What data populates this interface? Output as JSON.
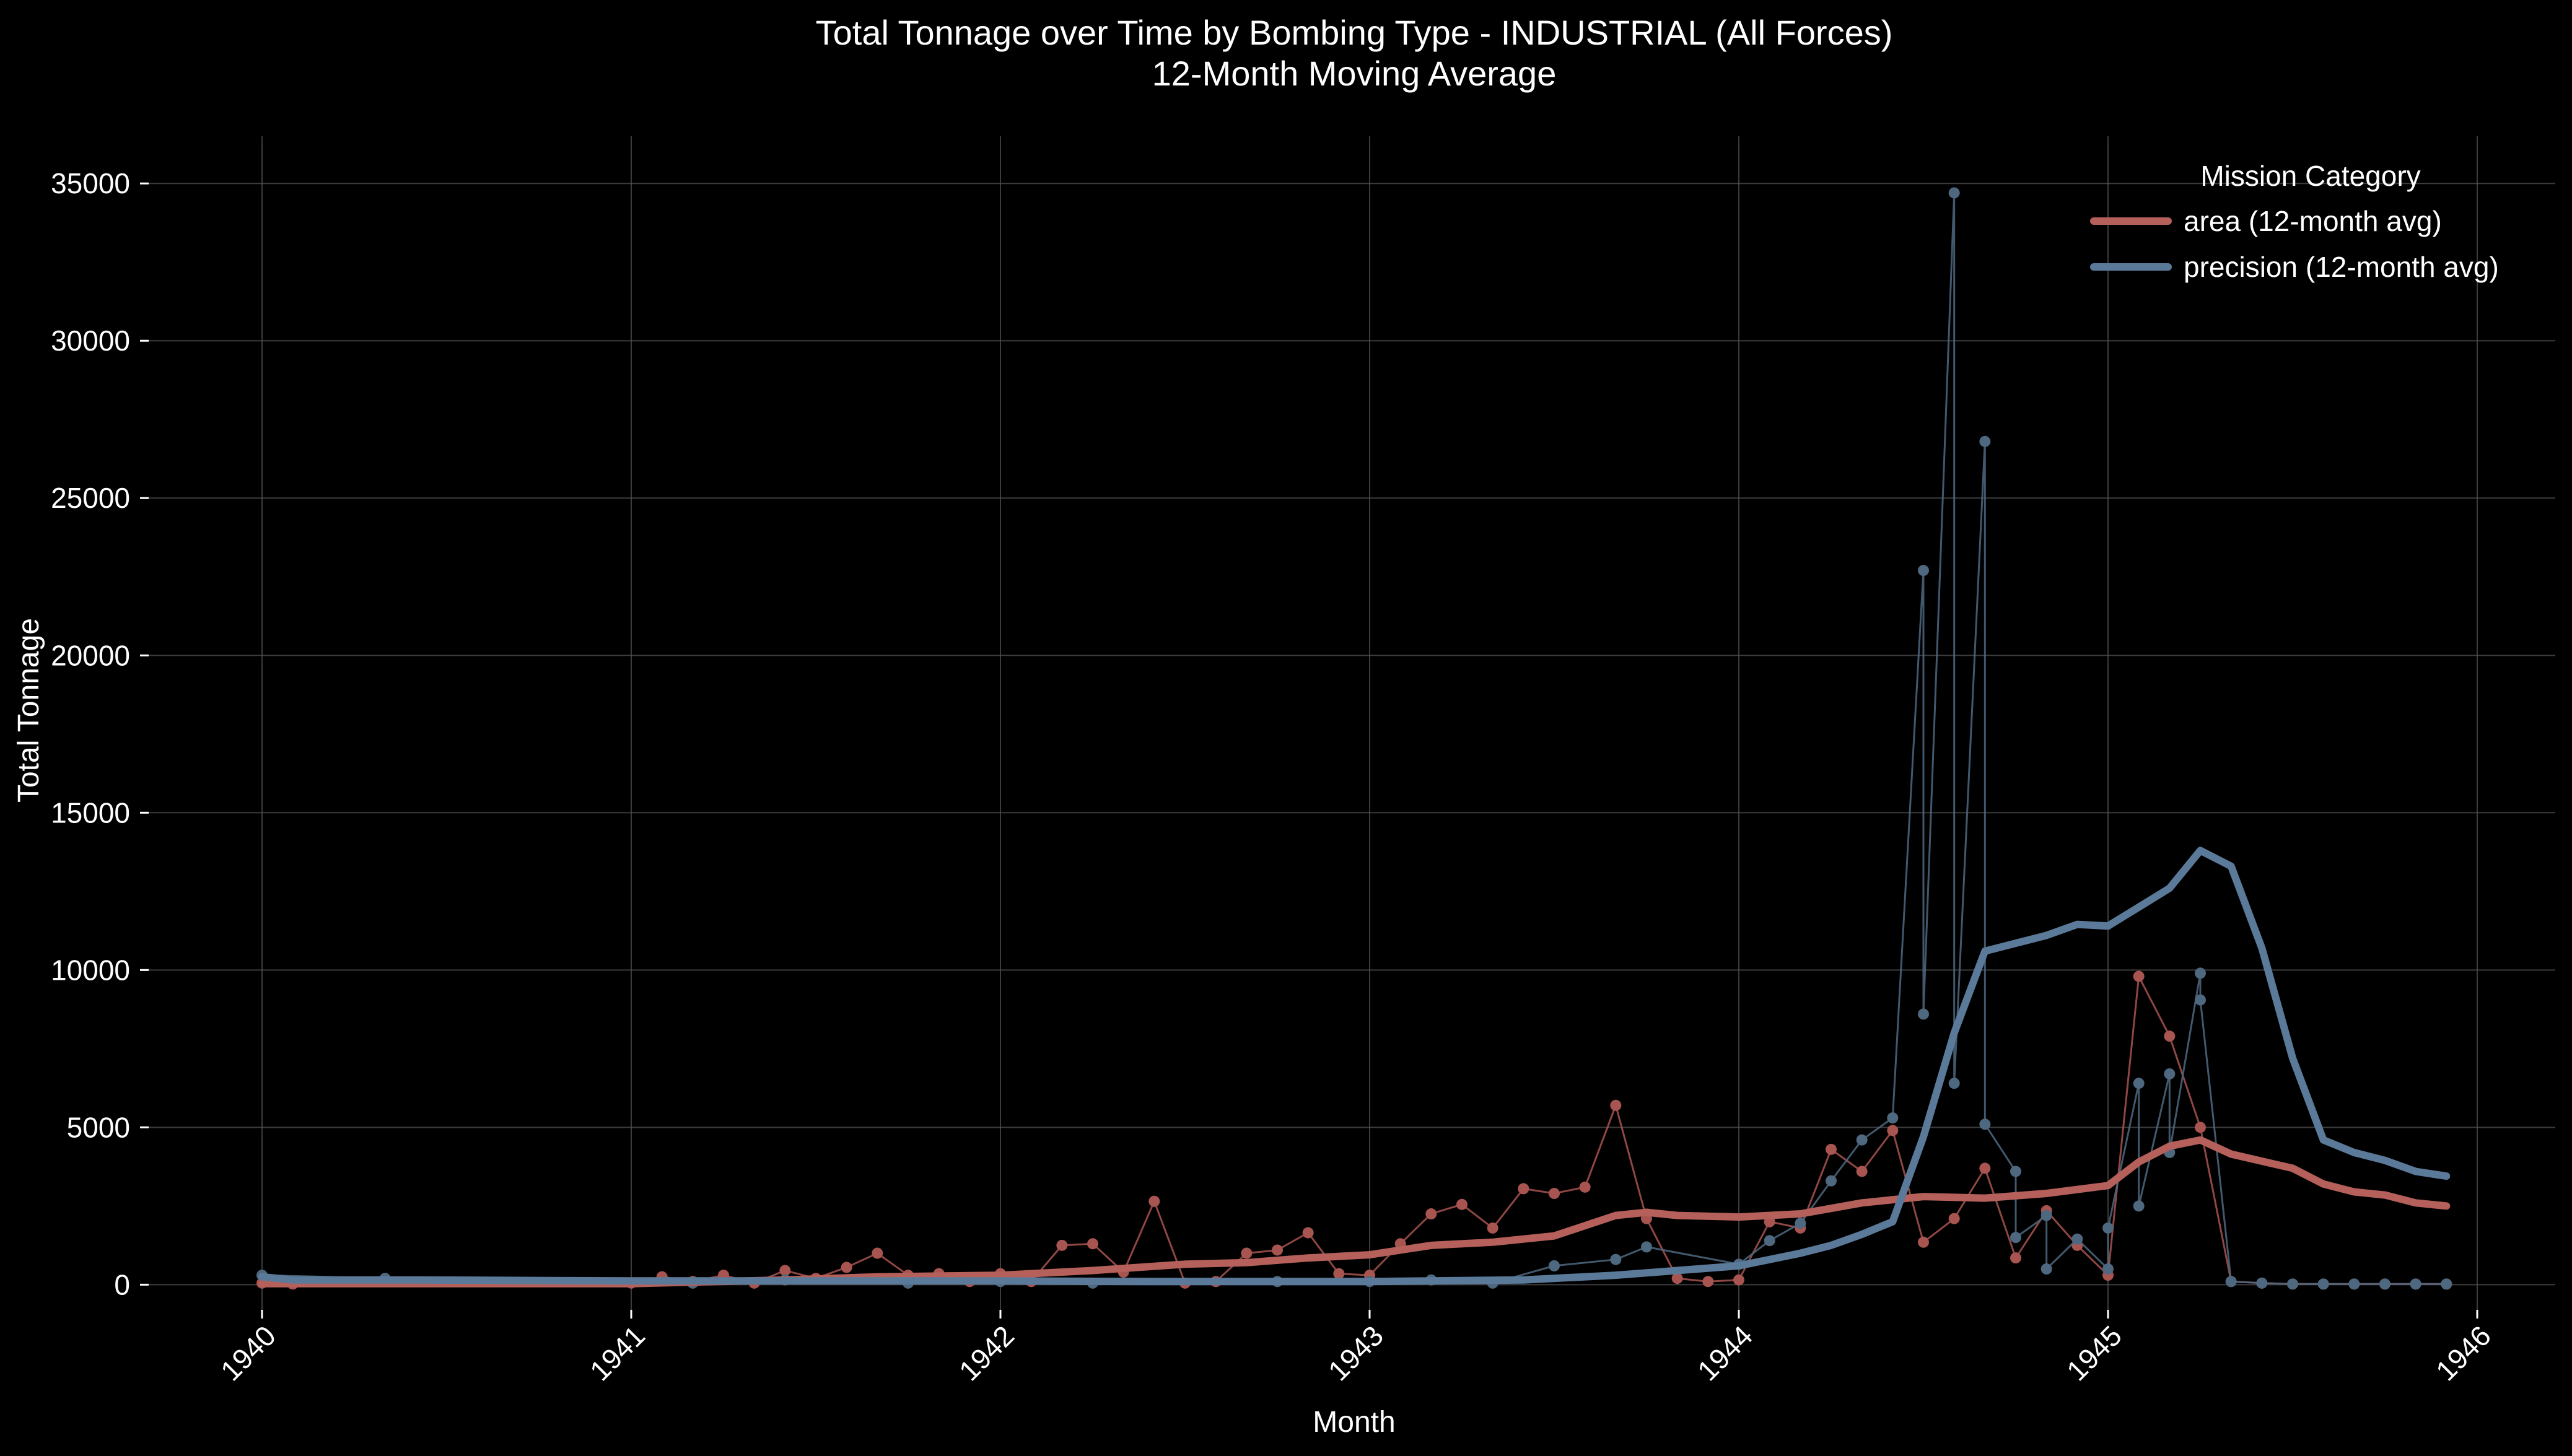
{
  "chart_data": {
    "type": "line",
    "title": "Total Tonnage over Time by Bombing Type - INDUSTRIAL  (All Forces)",
    "subtitle": "12-Month Moving Average",
    "xlabel": "Month",
    "ylabel": "Total Tonnage",
    "x_axis": {
      "type": "date",
      "range": [
        "1940-01",
        "1946-01"
      ],
      "ticks": [
        "1940",
        "1941",
        "1942",
        "1943",
        "1944",
        "1945",
        "1946"
      ]
    },
    "y_axis": {
      "range": [
        -800,
        36500
      ],
      "ticks": [
        0,
        5000,
        10000,
        15000,
        20000,
        25000,
        30000,
        35000
      ]
    },
    "grid": true,
    "legend": {
      "title": "Mission Category",
      "placement": "top-right"
    },
    "series": [
      {
        "name": "area (12-month avg)",
        "color": "#b5605a",
        "raw_color": "#a85450",
        "raw": [
          [
            "1940-01",
            50
          ],
          [
            "1940-02",
            20
          ],
          [
            "1941-01",
            50
          ],
          [
            "1941-02",
            250
          ],
          [
            "1941-03",
            100
          ],
          [
            "1941-04",
            300
          ],
          [
            "1941-05",
            50
          ],
          [
            "1941-06",
            450
          ],
          [
            "1941-07",
            200
          ],
          [
            "1941-08",
            550
          ],
          [
            "1941-09",
            1000
          ],
          [
            "1941-10",
            300
          ],
          [
            "1941-11",
            350
          ],
          [
            "1941-12",
            100
          ],
          [
            "1942-01",
            350
          ],
          [
            "1942-02",
            100
          ],
          [
            "1942-03",
            1250
          ],
          [
            "1942-04",
            1300
          ],
          [
            "1942-05",
            400
          ],
          [
            "1942-06",
            2650
          ],
          [
            "1942-07",
            50
          ],
          [
            "1942-08",
            100
          ],
          [
            "1942-09",
            1000
          ],
          [
            "1942-10",
            1100
          ],
          [
            "1942-11",
            1650
          ],
          [
            "1942-12",
            350
          ],
          [
            "1943-01",
            300
          ],
          [
            "1943-02",
            1300
          ],
          [
            "1943-03",
            2250
          ],
          [
            "1943-04",
            2550
          ],
          [
            "1943-05",
            1800
          ],
          [
            "1943-06",
            3050
          ],
          [
            "1943-07",
            2900
          ],
          [
            "1943-08",
            3100
          ],
          [
            "1943-09",
            5700
          ],
          [
            "1943-10",
            2100
          ],
          [
            "1943-11",
            200
          ],
          [
            "1943-12",
            100
          ],
          [
            "1944-01",
            150
          ],
          [
            "1944-02",
            2000
          ],
          [
            "1944-03",
            1800
          ],
          [
            "1944-04",
            4300
          ],
          [
            "1944-05",
            3600
          ],
          [
            "1944-06",
            4900
          ],
          [
            "1944-07",
            1350
          ],
          [
            "1944-08",
            2100
          ],
          [
            "1944-09",
            3700
          ],
          [
            "1944-10",
            850
          ],
          [
            "1944-11",
            2350
          ],
          [
            "1944-12",
            1250
          ],
          [
            "1945-01",
            300
          ],
          [
            "1945-02",
            9800
          ],
          [
            "1945-03",
            7900
          ],
          [
            "1945-04",
            5000
          ],
          [
            "1945-05",
            100
          ],
          [
            "1945-06",
            50
          ],
          [
            "1945-07",
            20
          ],
          [
            "1945-08",
            20
          ],
          [
            "1945-09",
            20
          ],
          [
            "1945-10",
            20
          ],
          [
            "1945-11",
            20
          ],
          [
            "1945-12",
            20
          ]
        ],
        "avg": [
          [
            "1940-01",
            30
          ],
          [
            "1940-06",
            30
          ],
          [
            "1941-01",
            30
          ],
          [
            "1941-03",
            80
          ],
          [
            "1941-06",
            150
          ],
          [
            "1941-09",
            250
          ],
          [
            "1942-01",
            300
          ],
          [
            "1942-04",
            450
          ],
          [
            "1942-07",
            650
          ],
          [
            "1942-09",
            700
          ],
          [
            "1942-11",
            850
          ],
          [
            "1943-01",
            950
          ],
          [
            "1943-03",
            1250
          ],
          [
            "1943-05",
            1350
          ],
          [
            "1943-07",
            1550
          ],
          [
            "1943-09",
            2200
          ],
          [
            "1943-10",
            2300
          ],
          [
            "1943-11",
            2200
          ],
          [
            "1944-01",
            2150
          ],
          [
            "1944-03",
            2250
          ],
          [
            "1944-05",
            2600
          ],
          [
            "1944-07",
            2800
          ],
          [
            "1944-09",
            2750
          ],
          [
            "1944-11",
            2900
          ],
          [
            "1945-01",
            3150
          ],
          [
            "1945-02",
            3900
          ],
          [
            "1945-03",
            4400
          ],
          [
            "1945-04",
            4600
          ],
          [
            "1945-05",
            4150
          ],
          [
            "1945-07",
            3700
          ],
          [
            "1945-08",
            3200
          ],
          [
            "1945-09",
            2950
          ],
          [
            "1945-10",
            2850
          ],
          [
            "1945-11",
            2600
          ],
          [
            "1945-12",
            2500
          ]
        ]
      },
      {
        "name": "precision (12-month avg)",
        "color": "#5b7a9a",
        "raw_color": "#4e6880",
        "raw": [
          [
            "1940-01",
            300
          ],
          [
            "1940-05",
            200
          ],
          [
            "1941-03",
            50
          ],
          [
            "1941-06",
            150
          ],
          [
            "1941-10",
            50
          ],
          [
            "1942-01",
            100
          ],
          [
            "1942-04",
            50
          ],
          [
            "1942-10",
            100
          ],
          [
            "1943-01",
            100
          ],
          [
            "1943-03",
            150
          ],
          [
            "1943-05",
            50
          ],
          [
            "1943-07",
            600
          ],
          [
            "1943-09",
            800
          ],
          [
            "1943-10",
            1200
          ],
          [
            "1944-01",
            650
          ],
          [
            "1944-02",
            1400
          ],
          [
            "1944-03",
            1950
          ],
          [
            "1944-04",
            3300
          ],
          [
            "1944-05",
            4600
          ],
          [
            "1944-06",
            5300
          ],
          [
            "1944-07",
            22700
          ],
          [
            "1944-07",
            8600
          ],
          [
            "1944-08",
            34700
          ],
          [
            "1944-08",
            6400
          ],
          [
            "1944-09",
            26800
          ],
          [
            "1944-09",
            5100
          ],
          [
            "1944-10",
            3600
          ],
          [
            "1944-10",
            1500
          ],
          [
            "1944-11",
            2200
          ],
          [
            "1944-11",
            500
          ],
          [
            "1944-12",
            1450
          ],
          [
            "1945-01",
            500
          ],
          [
            "1945-01",
            1800
          ],
          [
            "1945-02",
            6400
          ],
          [
            "1945-02",
            2500
          ],
          [
            "1945-03",
            6700
          ],
          [
            "1945-03",
            4200
          ],
          [
            "1945-04",
            9900
          ],
          [
            "1945-04",
            9050
          ],
          [
            "1945-05",
            100
          ],
          [
            "1945-06",
            50
          ],
          [
            "1945-07",
            20
          ],
          [
            "1945-08",
            20
          ],
          [
            "1945-09",
            20
          ],
          [
            "1945-10",
            20
          ],
          [
            "1945-11",
            20
          ],
          [
            "1945-12",
            20
          ]
        ],
        "avg": [
          [
            "1940-01",
            250
          ],
          [
            "1940-02",
            150
          ],
          [
            "1940-06",
            150
          ],
          [
            "1941-01",
            120
          ],
          [
            "1941-06",
            120
          ],
          [
            "1942-01",
            120
          ],
          [
            "1942-06",
            100
          ],
          [
            "1943-01",
            100
          ],
          [
            "1943-06",
            150
          ],
          [
            "1943-09",
            300
          ],
          [
            "1943-11",
            450
          ],
          [
            "1944-01",
            600
          ],
          [
            "1944-02",
            800
          ],
          [
            "1944-03",
            1000
          ],
          [
            "1944-04",
            1250
          ],
          [
            "1944-05",
            1600
          ],
          [
            "1944-06",
            2000
          ],
          [
            "1944-07",
            4700
          ],
          [
            "1944-08",
            8000
          ],
          [
            "1944-09",
            10600
          ],
          [
            "1944-10",
            10850
          ],
          [
            "1944-11",
            11100
          ],
          [
            "1944-12",
            11450
          ],
          [
            "1945-01",
            11400
          ],
          [
            "1945-02",
            12000
          ],
          [
            "1945-03",
            12600
          ],
          [
            "1945-04",
            13800
          ],
          [
            "1945-05",
            13300
          ],
          [
            "1945-06",
            10700
          ],
          [
            "1945-07",
            7200
          ],
          [
            "1945-08",
            4600
          ],
          [
            "1945-09",
            4200
          ],
          [
            "1945-10",
            3950
          ],
          [
            "1945-11",
            3600
          ],
          [
            "1945-12",
            3450
          ]
        ]
      }
    ]
  }
}
